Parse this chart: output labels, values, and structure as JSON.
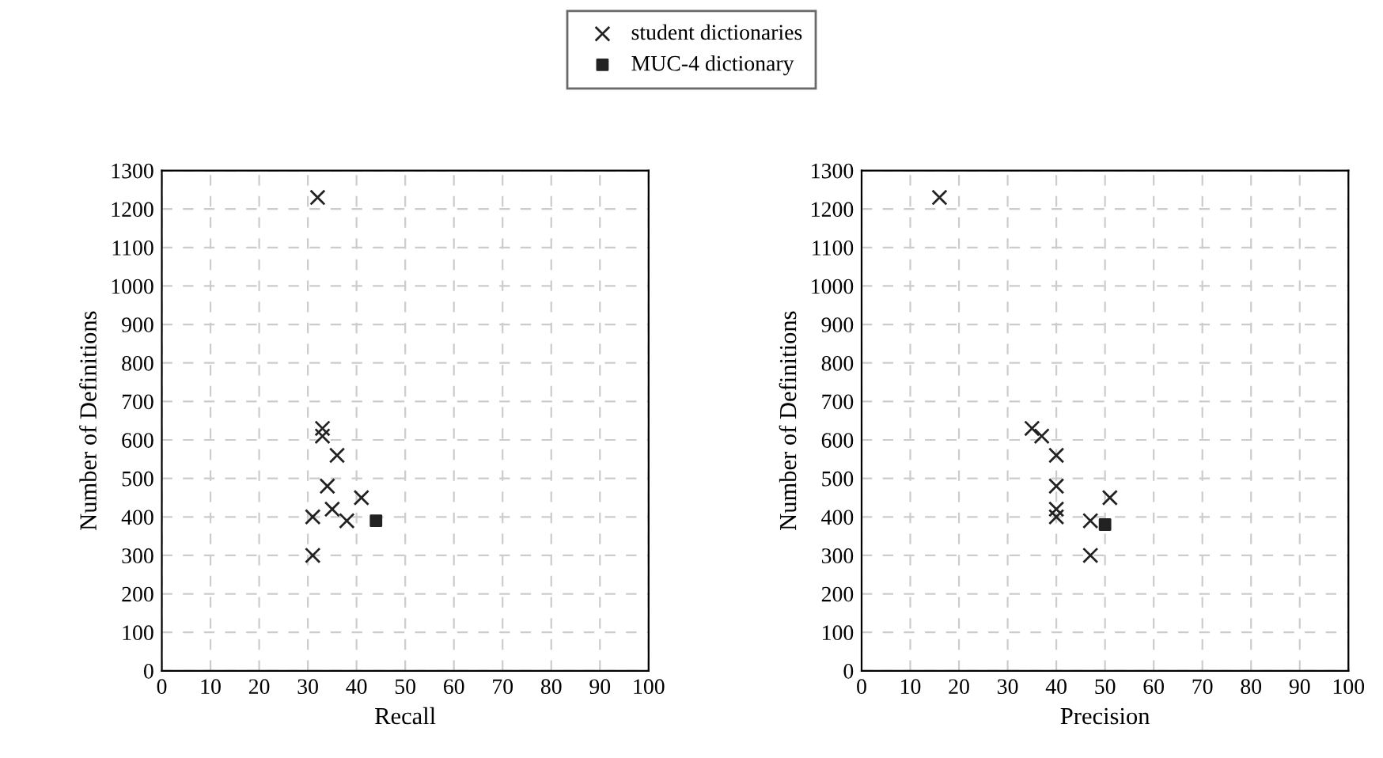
{
  "chart_data": [
    {
      "type": "scatter",
      "xlabel": "Recall",
      "ylabel": "Number of Definitions",
      "xlim": [
        0,
        100
      ],
      "ylim": [
        0,
        1300
      ],
      "xticks": [
        0,
        10,
        20,
        30,
        40,
        50,
        60,
        70,
        80,
        90,
        100
      ],
      "yticks": [
        0,
        100,
        200,
        300,
        400,
        500,
        600,
        700,
        800,
        900,
        1000,
        1100,
        1200,
        1300
      ],
      "grid": true,
      "legend": "top",
      "series": [
        {
          "name": "student dictionaries",
          "color": "#222222",
          "marker": "cross",
          "x": [
            32,
            33,
            33,
            36,
            34,
            41,
            35,
            31,
            38,
            31
          ],
          "values": [
            1230,
            630,
            610,
            560,
            480,
            450,
            420,
            400,
            390,
            300
          ]
        },
        {
          "name": "MUC-4 dictionary",
          "color": "#222222",
          "marker": "square",
          "x": [
            44
          ],
          "values": [
            390
          ]
        }
      ]
    },
    {
      "type": "scatter",
      "xlabel": "Precision",
      "ylabel": "Number of Definitions",
      "xlim": [
        0,
        100
      ],
      "ylim": [
        0,
        1300
      ],
      "xticks": [
        0,
        10,
        20,
        30,
        40,
        50,
        60,
        70,
        80,
        90,
        100
      ],
      "yticks": [
        0,
        100,
        200,
        300,
        400,
        500,
        600,
        700,
        800,
        900,
        1000,
        1100,
        1200,
        1300
      ],
      "grid": true,
      "series": [
        {
          "name": "student dictionaries",
          "color": "#222222",
          "marker": "cross",
          "x": [
            16,
            35,
            37,
            40,
            40,
            51,
            40,
            40,
            47,
            47
          ],
          "values": [
            1230,
            630,
            610,
            560,
            480,
            450,
            420,
            400,
            390,
            300
          ]
        },
        {
          "name": "MUC-4 dictionary",
          "color": "#222222",
          "marker": "square",
          "x": [
            50
          ],
          "values": [
            380
          ]
        }
      ]
    }
  ]
}
